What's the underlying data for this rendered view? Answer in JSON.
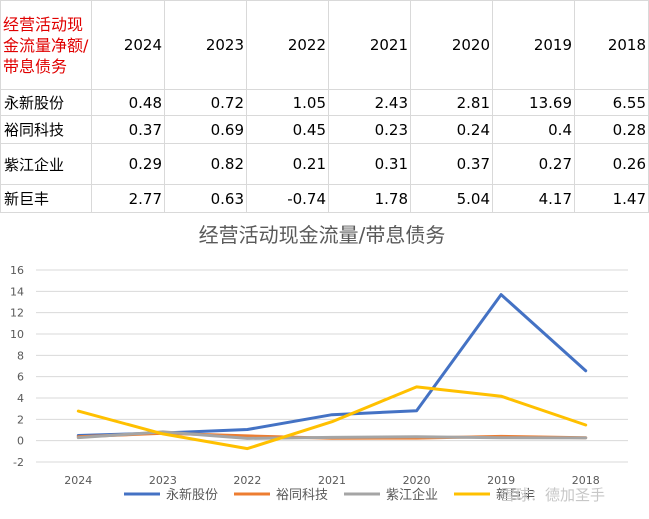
{
  "table": {
    "corner_label": "经营活动现金流量净额/带息债务",
    "years": [
      "2024",
      "2023",
      "2022",
      "2021",
      "2020",
      "2019",
      "2018"
    ],
    "rows": [
      {
        "name": "永新股份",
        "values": [
          "0.48",
          "0.72",
          "1.05",
          "2.43",
          "2.81",
          "13.69",
          "6.55"
        ]
      },
      {
        "name": "裕同科技",
        "values": [
          "0.37",
          "0.69",
          "0.45",
          "0.23",
          "0.24",
          "0.4",
          "0.28"
        ]
      },
      {
        "name": "紫江企业",
        "values": [
          "0.29",
          "0.82",
          "0.21",
          "0.31",
          "0.37",
          "0.27",
          "0.26"
        ]
      },
      {
        "name": "新巨丰",
        "values": [
          "2.77",
          "0.63",
          "-0.74",
          "1.78",
          "5.04",
          "4.17",
          "1.47"
        ]
      }
    ]
  },
  "chart_data": {
    "type": "line",
    "title": "经营活动现金流量/带息债务",
    "categories": [
      "2024",
      "2023",
      "2022",
      "2021",
      "2020",
      "2019",
      "2018"
    ],
    "series": [
      {
        "name": "永新股份",
        "color": "#4472c4",
        "values": [
          0.48,
          0.72,
          1.05,
          2.43,
          2.81,
          13.69,
          6.55
        ]
      },
      {
        "name": "裕同科技",
        "color": "#ed7d31",
        "values": [
          0.37,
          0.69,
          0.45,
          0.23,
          0.24,
          0.4,
          0.28
        ]
      },
      {
        "name": "紫江企业",
        "color": "#a5a5a5",
        "values": [
          0.29,
          0.82,
          0.21,
          0.31,
          0.37,
          0.27,
          0.26
        ]
      },
      {
        "name": "新巨丰",
        "color": "#ffc000",
        "values": [
          2.77,
          0.63,
          -0.74,
          1.78,
          5.04,
          4.17,
          1.47
        ]
      }
    ],
    "ylim": [
      -2,
      16
    ],
    "yticks": [
      "-2",
      "0",
      "2",
      "4",
      "6",
      "8",
      "10",
      "12",
      "14",
      "16"
    ],
    "grid": true,
    "legend": "bottom"
  },
  "watermark": "雪球：德加圣手"
}
